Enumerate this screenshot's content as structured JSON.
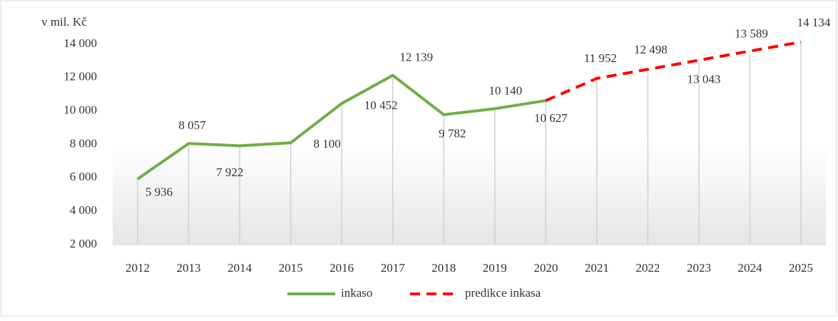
{
  "chart_data": {
    "type": "line",
    "y_axis_label": "v mil. Kč",
    "categories": [
      "2012",
      "2013",
      "2014",
      "2015",
      "2016",
      "2017",
      "2018",
      "2019",
      "2020",
      "2021",
      "2022",
      "2023",
      "2024",
      "2025"
    ],
    "series": [
      {
        "name": "inkaso",
        "color": "#70ad47",
        "dashed": false,
        "values": [
          5936,
          8057,
          7922,
          8100,
          10452,
          12139,
          9782,
          10140,
          10627,
          null,
          null,
          null,
          null,
          null
        ],
        "value_labels": [
          "5 936",
          "8 057",
          "7 922",
          "8 100",
          "10 452",
          "12 139",
          "9 782",
          "10 140",
          "10 627",
          null,
          null,
          null,
          null,
          null
        ]
      },
      {
        "name": "predikce inkasa",
        "color": "#ff0000",
        "dashed": true,
        "values": [
          null,
          null,
          null,
          null,
          null,
          null,
          null,
          null,
          10627,
          11952,
          12498,
          13043,
          13589,
          14134
        ],
        "value_labels": [
          null,
          null,
          null,
          null,
          null,
          null,
          null,
          null,
          null,
          "11 952",
          "12 498",
          "13 043",
          "13 589",
          "14 134"
        ]
      }
    ],
    "ylim": [
      2000,
      14000
    ],
    "yticks": [
      {
        "value": 2000,
        "label": "2 000"
      },
      {
        "value": 4000,
        "label": "4 000"
      },
      {
        "value": 6000,
        "label": "6 000"
      },
      {
        "value": 8000,
        "label": "8 000"
      },
      {
        "value": 10000,
        "label": "10 000"
      },
      {
        "value": 12000,
        "label": "12 000"
      },
      {
        "value": 14000,
        "label": "14 000"
      }
    ],
    "grid": false,
    "drop_lines": true,
    "legend": "bottom"
  }
}
